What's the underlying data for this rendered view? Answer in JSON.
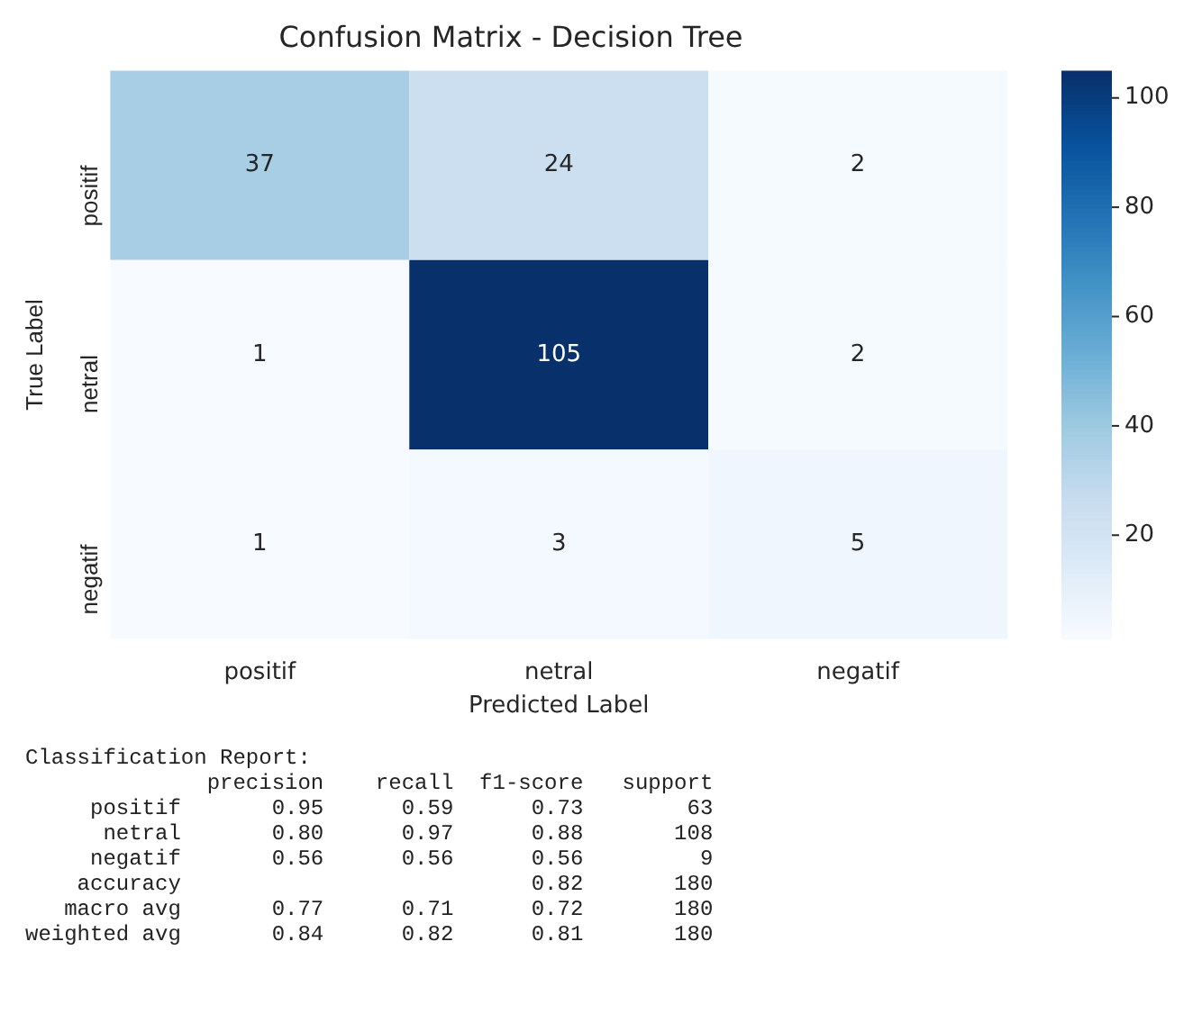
{
  "chart_data": {
    "type": "heatmap",
    "title": "Confusion Matrix - Decision Tree",
    "xlabel": "Predicted Label",
    "ylabel": "True Label",
    "categories": [
      "positif",
      "netral",
      "negatif"
    ],
    "y_categories": [
      "positif",
      "netral",
      "negatif"
    ],
    "cells": [
      [
        37,
        24,
        2
      ],
      [
        1,
        105,
        2
      ],
      [
        1,
        3,
        5
      ]
    ],
    "clim": [
      1,
      105
    ],
    "cticks": [
      20,
      40,
      60,
      80,
      100
    ],
    "data_labels": true,
    "annotations": [
      "Classification Report:",
      "              precision    recall  f1-score   support",
      "     positif       0.95      0.59      0.73        63",
      "      netral       0.80      0.97      0.88       108",
      "     negatif       0.56      0.56      0.56         9",
      "    accuracy                           0.82       180",
      "   macro avg       0.77      0.71      0.72       180",
      "weighted avg       0.84      0.82      0.81       180"
    ]
  }
}
